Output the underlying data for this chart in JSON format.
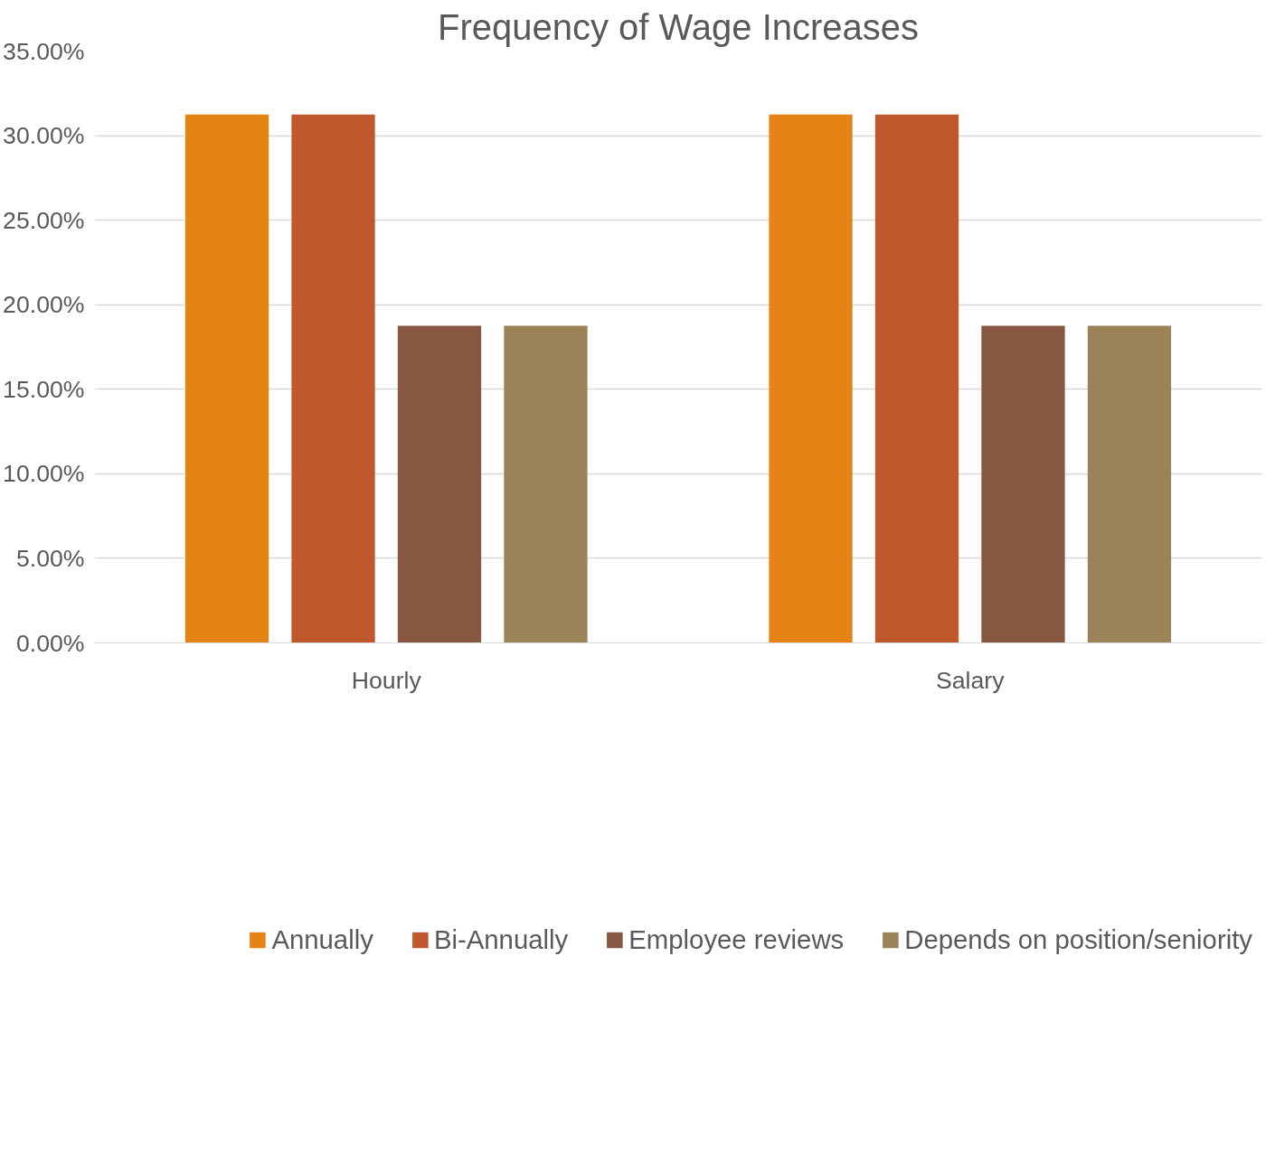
{
  "chart_data": {
    "type": "bar",
    "title": "Frequency of Wage Increases",
    "categories": [
      "Hourly",
      "Salary"
    ],
    "series": [
      {
        "name": "Annually",
        "color": "#e58314",
        "values": [
          31.25,
          31.25
        ]
      },
      {
        "name": "Bi-Annually",
        "color": "#bf592d",
        "values": [
          31.25,
          31.25
        ]
      },
      {
        "name": "Employee reviews",
        "color": "#875741",
        "values": [
          18.75,
          18.75
        ]
      },
      {
        "name": "Depends on position/seniority",
        "color": "#9c8357",
        "values": [
          18.75,
          18.75
        ]
      }
    ],
    "ylim": [
      0,
      35
    ],
    "yticks": [
      {
        "value": 0,
        "label": "0.00%"
      },
      {
        "value": 5,
        "label": "5.00%"
      },
      {
        "value": 10,
        "label": "10.00%"
      },
      {
        "value": 15,
        "label": "15.00%"
      },
      {
        "value": 20,
        "label": "20.00%"
      },
      {
        "value": 25,
        "label": "25.00%"
      },
      {
        "value": 30,
        "label": "30.00%"
      },
      {
        "value": 35,
        "label": "35.00%"
      }
    ],
    "grid": "y",
    "legend": "bottom"
  }
}
